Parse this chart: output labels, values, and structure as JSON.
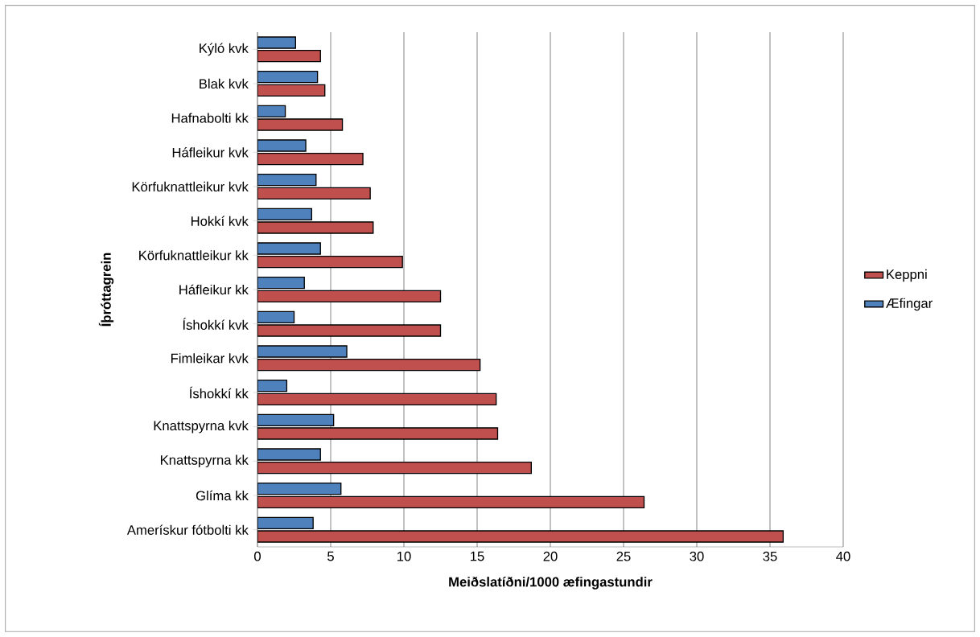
{
  "chart_data": {
    "type": "bar",
    "orientation": "horizontal",
    "xlabel": "Meiðslatíðni/1000 æfingastundir",
    "ylabel": "Íþróttagrein",
    "categories": [
      "Kýló kvk",
      "Blak kvk",
      "Hafnabolti kk",
      "Háfleikur kvk",
      "Körfuknattleikur kvk",
      "Hokkí kvk",
      "Körfuknattleikur kk",
      "Háfleikur kk",
      "Íshokkí kvk",
      "Fimleikar kvk",
      "Íshokkí kk",
      "Knattspyrna kvk",
      "Knattspyrna kk",
      "Glíma kk",
      "Amerískur fótbolti kk"
    ],
    "series": [
      {
        "name": "Keppni",
        "color": "#c0504d",
        "values": [
          4.3,
          4.6,
          5.8,
          7.2,
          7.7,
          7.9,
          9.9,
          12.5,
          12.5,
          15.2,
          16.3,
          16.4,
          18.7,
          26.4,
          35.9
        ]
      },
      {
        "name": "Æfingar",
        "color": "#4f81bd",
        "values": [
          2.6,
          4.1,
          1.9,
          3.3,
          4.0,
          3.7,
          4.3,
          3.2,
          2.5,
          6.1,
          2.0,
          5.2,
          4.3,
          5.7,
          3.8
        ]
      }
    ],
    "xlim": [
      0,
      40
    ],
    "xticks": [
      0,
      5,
      10,
      15,
      20,
      25,
      30,
      35,
      40
    ],
    "grid": "x",
    "legend": "right"
  }
}
